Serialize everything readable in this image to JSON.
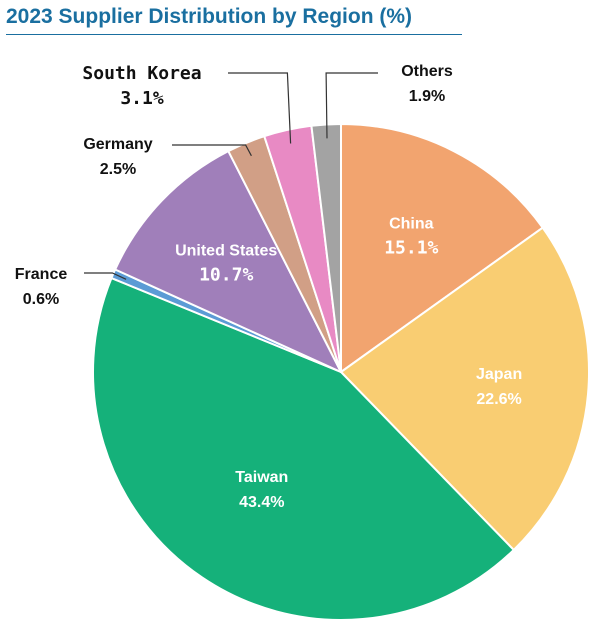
{
  "chart_data": {
    "type": "pie",
    "title": "2023 Supplier Distribution by Region (%)",
    "slices": [
      {
        "label": "China",
        "value": 15.1,
        "value_text": "15.1%",
        "color": "#f2a46f",
        "label_placement": "inside",
        "value_font": "mono",
        "side": "right"
      },
      {
        "label": "Japan",
        "value": 22.6,
        "value_text": "22.6%",
        "color": "#f9cd72",
        "label_placement": "inside",
        "value_font": "sans",
        "side": "right"
      },
      {
        "label": "Taiwan",
        "value": 43.4,
        "value_text": "43.4%",
        "color": "#15b17a",
        "label_placement": "inside",
        "value_font": "sans",
        "side": "left"
      },
      {
        "label": "France",
        "value": 0.6,
        "value_text": "0.6%",
        "color": "#5b9bd5",
        "label_placement": "outside",
        "value_font": "sans",
        "side": "left"
      },
      {
        "label": "United States",
        "value": 10.7,
        "value_text": "10.7%",
        "color": "#a07fba",
        "label_placement": "inside",
        "value_font": "mono",
        "side": "left"
      },
      {
        "label": "Germany",
        "value": 2.5,
        "value_text": "2.5%",
        "color": "#d19f86",
        "label_placement": "outside",
        "value_font": "sans",
        "side": "left"
      },
      {
        "label": "South Korea",
        "value": 3.1,
        "value_text": "3.1%",
        "color": "#e88ac4",
        "label_placement": "outside",
        "value_font": "mono",
        "side": "left"
      },
      {
        "label": "Others",
        "value": 1.9,
        "value_text": "1.9%",
        "color": "#a3a3a3",
        "label_placement": "outside",
        "value_font": "sans",
        "side": "right"
      }
    ],
    "start_angle": "12 o'clock",
    "direction": "clockwise",
    "legend": "none"
  }
}
